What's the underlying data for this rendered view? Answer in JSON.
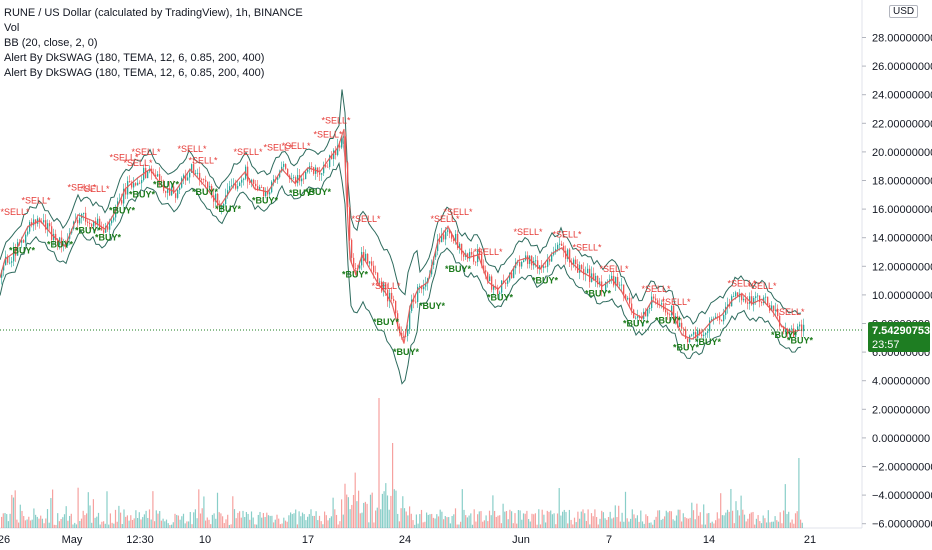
{
  "legend": {
    "title": "RUNE / US Dollar (calculated by TradingView), 1h, BINANCE",
    "vol": "Vol",
    "bb": "BB (20, close, 2, 0)",
    "alert1": "Alert By DkSWAG (180, TEMA, 12, 6, 0.85, 200, 400)",
    "alert2": "Alert By DkSWAG (180, TEMA, 12, 6, 0.85, 200, 400)"
  },
  "currency_badge": "USD",
  "last_price": {
    "value": "7.54290753",
    "countdown": "23:57"
  },
  "colors": {
    "up": "#26a69a",
    "down": "#ef5350",
    "band": "#2e6b5e",
    "buy": "#1b7a1b",
    "sell": "#e53935",
    "price_badge": "#1e7d22"
  },
  "chart_data": {
    "type": "line",
    "title": "RUNE / US Dollar (calculated by TradingView), 1h, BINANCE",
    "y_axis": {
      "ylim": [
        -7,
        28
      ],
      "ticks": [
        "28.00000000",
        "26.00000000",
        "24.00000000",
        "22.00000000",
        "20.00000000",
        "18.00000000",
        "16.00000000",
        "14.00000000",
        "12.00000000",
        "10.00000000",
        "8.00000000",
        "6.00000000",
        "4.00000000",
        "2.00000000",
        "0.00000000",
        "−2.00000000",
        "−4.00000000",
        "−6.00000000"
      ]
    },
    "x_axis": {
      "ticks": [
        "26",
        "May",
        "12:30",
        "10",
        "17",
        "24",
        "Jun",
        "7",
        "14",
        "21"
      ]
    },
    "series": [
      {
        "name": "RUNE / US Dollar",
        "x": [
          "26",
          "May",
          "12:30",
          "10",
          "17",
          "24",
          "Jun",
          "7",
          "14",
          "21"
        ],
        "points": [
          [
            0,
            11.2
          ],
          [
            5,
            12.5
          ],
          [
            15,
            13.0
          ],
          [
            28,
            14.8
          ],
          [
            40,
            15.2
          ],
          [
            52,
            14.2
          ],
          [
            65,
            13.4
          ],
          [
            78,
            15.6
          ],
          [
            92,
            15.2
          ],
          [
            105,
            14.6
          ],
          [
            115,
            15.8
          ],
          [
            125,
            17.4
          ],
          [
            138,
            18.2
          ],
          [
            150,
            18.8
          ],
          [
            162,
            17.6
          ],
          [
            175,
            17.2
          ],
          [
            190,
            18.8
          ],
          [
            205,
            17.6
          ],
          [
            220,
            16.2
          ],
          [
            235,
            17.8
          ],
          [
            245,
            18.6
          ],
          [
            255,
            17.4
          ],
          [
            268,
            17.2
          ],
          [
            282,
            18.8
          ],
          [
            295,
            17.8
          ],
          [
            308,
            18.9
          ],
          [
            320,
            18.6
          ],
          [
            330,
            19.6
          ],
          [
            338,
            20.3
          ],
          [
            344,
            21.6
          ],
          [
            346,
            17.5
          ],
          [
            350,
            12.5
          ],
          [
            356,
            11.4
          ],
          [
            362,
            12.8
          ],
          [
            370,
            11.8
          ],
          [
            378,
            10.8
          ],
          [
            385,
            10.2
          ],
          [
            392,
            9.4
          ],
          [
            398,
            7.8
          ],
          [
            404,
            6.6
          ],
          [
            410,
            9.2
          ],
          [
            418,
            10.4
          ],
          [
            428,
            10.9
          ],
          [
            438,
            13.8
          ],
          [
            448,
            14.8
          ],
          [
            458,
            13.4
          ],
          [
            468,
            12.6
          ],
          [
            478,
            12.8
          ],
          [
            488,
            10.9
          ],
          [
            498,
            10.4
          ],
          [
            508,
            11.2
          ],
          [
            518,
            12.4
          ],
          [
            528,
            12.6
          ],
          [
            540,
            11.8
          ],
          [
            552,
            12.9
          ],
          [
            562,
            13.3
          ],
          [
            572,
            12.2
          ],
          [
            582,
            11.6
          ],
          [
            592,
            11.2
          ],
          [
            602,
            10.6
          ],
          [
            612,
            11.1
          ],
          [
            622,
            10.2
          ],
          [
            632,
            8.8
          ],
          [
            642,
            8.4
          ],
          [
            652,
            9.6
          ],
          [
            662,
            9.2
          ],
          [
            672,
            8.8
          ],
          [
            682,
            7.2
          ],
          [
            692,
            6.9
          ],
          [
            702,
            7.4
          ],
          [
            712,
            8.2
          ],
          [
            722,
            8.6
          ],
          [
            732,
            9.6
          ],
          [
            742,
            10.1
          ],
          [
            752,
            9.4
          ],
          [
            762,
            9.7
          ],
          [
            772,
            8.9
          ],
          [
            782,
            7.8
          ],
          [
            792,
            7.4
          ],
          [
            800,
            7.54
          ]
        ]
      }
    ],
    "signals": [
      {
        "label": "*SELL*",
        "x": 15,
        "y": 15.6
      },
      {
        "label": "*SELL*",
        "x": 36,
        "y": 16.4
      },
      {
        "label": "*SELL*",
        "x": 82,
        "y": 17.3
      },
      {
        "label": "*SELL*",
        "x": 95,
        "y": 17.2
      },
      {
        "label": "*SELL*",
        "x": 124,
        "y": 19.4
      },
      {
        "label": "*SELL*",
        "x": 146,
        "y": 19.8
      },
      {
        "label": "*SELL*",
        "x": 138,
        "y": 19.0
      },
      {
        "label": "*SELL*",
        "x": 192,
        "y": 20.0
      },
      {
        "label": "*SELL*",
        "x": 203,
        "y": 19.2
      },
      {
        "label": "*SELL*",
        "x": 248,
        "y": 19.8
      },
      {
        "label": "*SELL*",
        "x": 278,
        "y": 20.1
      },
      {
        "label": "*SELL*",
        "x": 296,
        "y": 20.2
      },
      {
        "label": "*SELL*",
        "x": 336,
        "y": 22.0
      },
      {
        "label": "*SELL*",
        "x": 328,
        "y": 21.0
      },
      {
        "label": "*SELL*",
        "x": 366,
        "y": 15.1
      },
      {
        "label": "*SELL*",
        "x": 386,
        "y": 10.4
      },
      {
        "label": "*SELL*",
        "x": 445,
        "y": 15.1
      },
      {
        "label": "*SELL*",
        "x": 458,
        "y": 15.6
      },
      {
        "label": "*SELL*",
        "x": 488,
        "y": 12.8
      },
      {
        "label": "*SELL*",
        "x": 528,
        "y": 14.2
      },
      {
        "label": "*SELL*",
        "x": 567,
        "y": 14.0
      },
      {
        "label": "*SELL*",
        "x": 587,
        "y": 13.1
      },
      {
        "label": "*SELL*",
        "x": 614,
        "y": 11.6
      },
      {
        "label": "*SELL*",
        "x": 656,
        "y": 10.2
      },
      {
        "label": "*SELL*",
        "x": 676,
        "y": 9.3
      },
      {
        "label": "*SELL*",
        "x": 742,
        "y": 10.6
      },
      {
        "label": "*SELL*",
        "x": 762,
        "y": 10.4
      },
      {
        "label": "*SELL*",
        "x": 790,
        "y": 8.6
      },
      {
        "label": "*BUY*",
        "x": 22,
        "y": 12.9
      },
      {
        "label": "*BUY*",
        "x": 60,
        "y": 13.3
      },
      {
        "label": "*BUY*",
        "x": 88,
        "y": 14.3
      },
      {
        "label": "*BUY*",
        "x": 108,
        "y": 13.8
      },
      {
        "label": "*BUY*",
        "x": 122,
        "y": 15.7
      },
      {
        "label": "*BUY*",
        "x": 142,
        "y": 16.8
      },
      {
        "label": "*BUY*",
        "x": 166,
        "y": 17.5
      },
      {
        "label": "*BUY*",
        "x": 205,
        "y": 17.0
      },
      {
        "label": "*BUY*",
        "x": 228,
        "y": 15.8
      },
      {
        "label": "*BUY*",
        "x": 265,
        "y": 16.4
      },
      {
        "label": "*BUY*",
        "x": 302,
        "y": 16.9
      },
      {
        "label": "*BUY*",
        "x": 318,
        "y": 17.0
      },
      {
        "label": "*BUY*",
        "x": 355,
        "y": 11.2
      },
      {
        "label": "*BUY*",
        "x": 386,
        "y": 7.9
      },
      {
        "label": "*BUY*",
        "x": 406,
        "y": 5.8
      },
      {
        "label": "*BUY*",
        "x": 432,
        "y": 9.0
      },
      {
        "label": "*BUY*",
        "x": 458,
        "y": 11.6
      },
      {
        "label": "*BUY*",
        "x": 500,
        "y": 9.6
      },
      {
        "label": "*BUY*",
        "x": 545,
        "y": 10.8
      },
      {
        "label": "*BUY*",
        "x": 598,
        "y": 9.9
      },
      {
        "label": "*BUY*",
        "x": 636,
        "y": 7.8
      },
      {
        "label": "*BUY*",
        "x": 668,
        "y": 8.0
      },
      {
        "label": "*BUY*",
        "x": 686,
        "y": 6.1
      },
      {
        "label": "*BUY*",
        "x": 708,
        "y": 6.5
      },
      {
        "label": "*BUY*",
        "x": 784,
        "y": 7.0
      },
      {
        "label": "*BUY*",
        "x": 800,
        "y": 6.6
      }
    ],
    "grid": true,
    "legend": "top-left"
  }
}
